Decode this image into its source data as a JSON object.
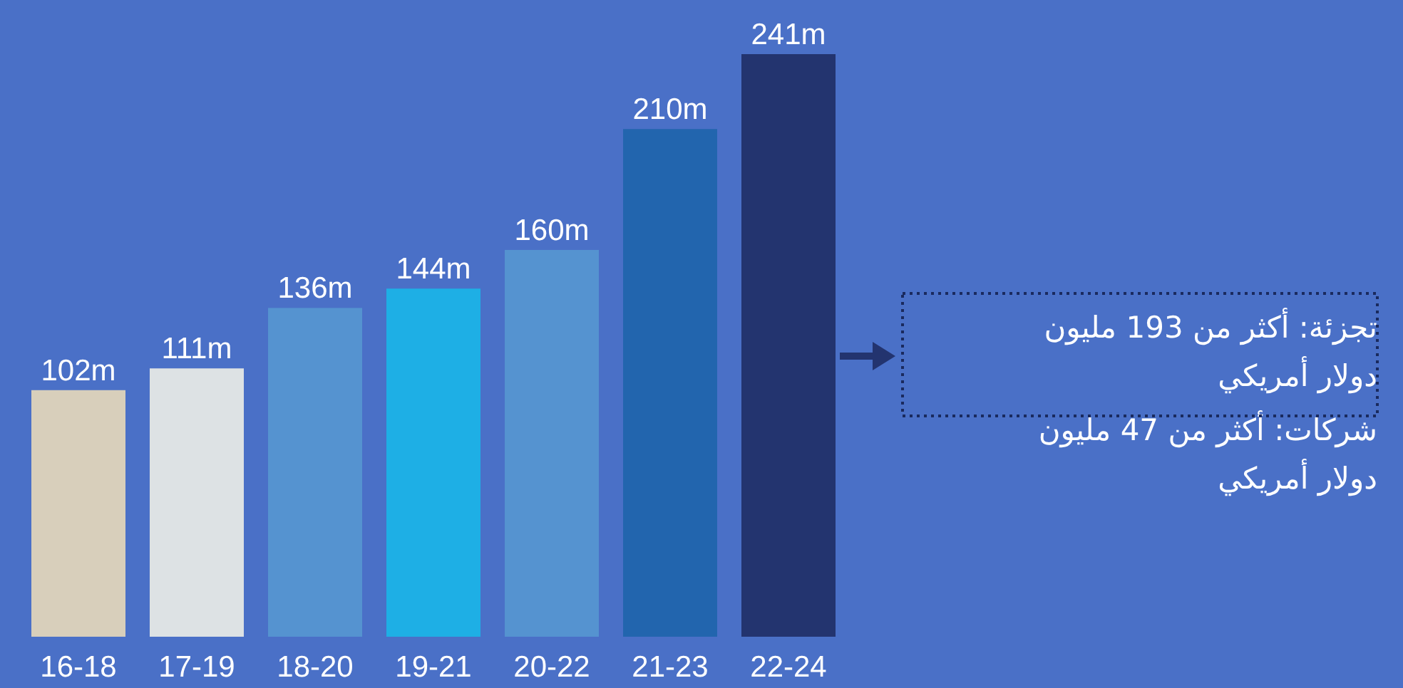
{
  "chart_data": {
    "type": "bar",
    "categories": [
      "16-18",
      "17-19",
      "18-20",
      "19-21",
      "20-22",
      "21-23",
      "22-24"
    ],
    "values": [
      102,
      111,
      136,
      144,
      160,
      210,
      241
    ],
    "colors": [
      "#d8cfbb",
      "#dde2e4",
      "#5593d0",
      "#1eafe5",
      "#5593d0",
      "#2265ae",
      "#23346f"
    ],
    "value_labels": [
      "102m",
      "111m",
      "136m",
      "144m",
      "160m",
      "210m",
      "241m"
    ],
    "annotations": [
      "تجزئة: أكثر من 193 مليون دولار أمريكي",
      "شركات: أكثر من 47 مليون دولار أمريكي"
    ]
  }
}
